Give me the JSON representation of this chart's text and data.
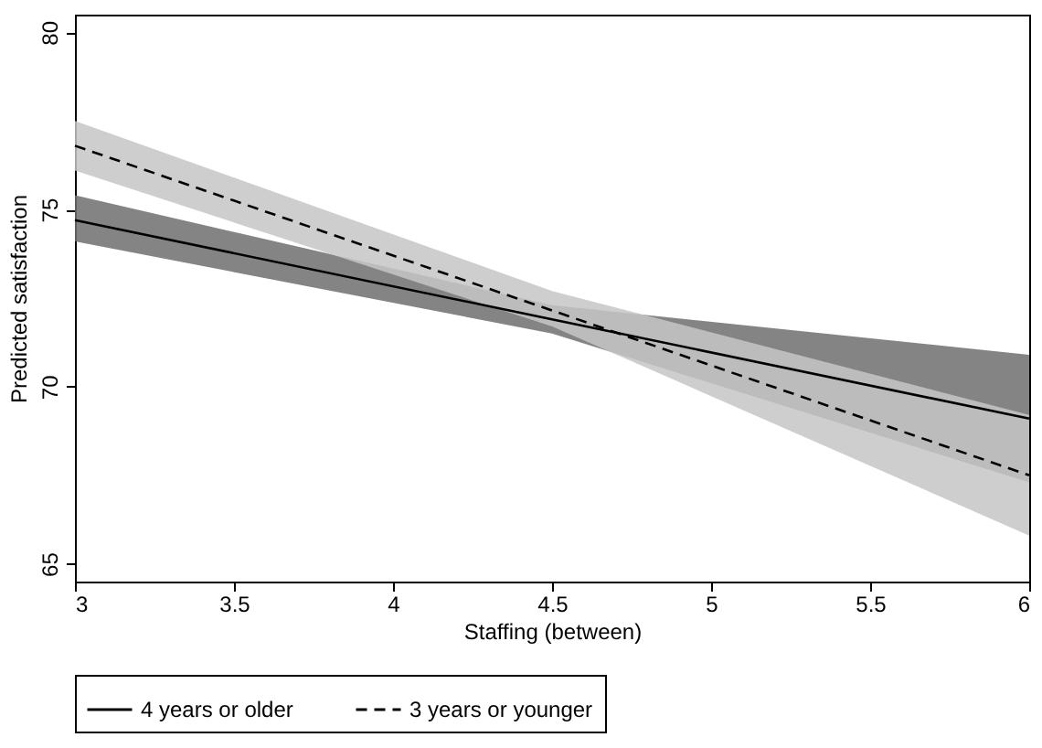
{
  "chart_data": {
    "type": "line",
    "xlabel": "Staffing (between)",
    "ylabel": "Predicted satisfaction",
    "x": [
      3,
      4.5,
      6
    ],
    "xlim": [
      3,
      6
    ],
    "xticks": [
      3,
      3.5,
      4,
      4.5,
      5,
      5.5,
      6
    ],
    "ylim": [
      64.5,
      80.5
    ],
    "yticks": [
      65,
      70,
      75,
      80
    ],
    "grid": false,
    "legend": "bottom",
    "marker": "none",
    "series": [
      {
        "name": "4 years or older",
        "color": "#000000",
        "line_style": "solid",
        "values": [
          74.7,
          71.9,
          69.1
        ],
        "lower": [
          74.1,
          71.5,
          67.3
        ],
        "upper": [
          75.4,
          72.3,
          70.9
        ]
      },
      {
        "name": "3 years or younger",
        "color": "#000000",
        "line_style": "dashed",
        "values": [
          76.8,
          72.15,
          67.5
        ],
        "lower": [
          76.1,
          71.7,
          65.8
        ],
        "upper": [
          77.5,
          72.7,
          69.2
        ]
      }
    ]
  }
}
